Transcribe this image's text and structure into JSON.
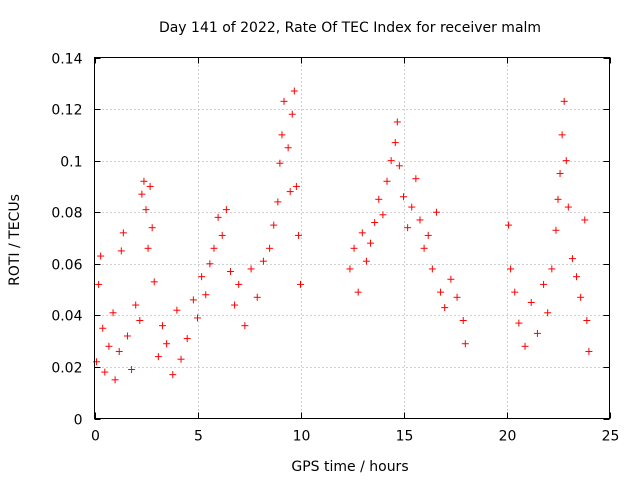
{
  "chart_data": {
    "type": "scatter",
    "title": "Day 141 of 2022, Rate Of TEC Index for receiver malm",
    "xlabel": "GPS time / hours",
    "ylabel": "ROTI / TECUs",
    "xlim": [
      0,
      25
    ],
    "ylim": [
      0,
      0.14
    ],
    "x_ticks": [
      0,
      5,
      10,
      15,
      20,
      25
    ],
    "x_tick_labels": [
      "0",
      "5",
      "10",
      "15",
      "20",
      "25"
    ],
    "y_ticks": [
      0,
      0.02,
      0.04,
      0.06,
      0.08,
      0.1,
      0.12,
      0.14
    ],
    "y_tick_labels": [
      "0",
      "0.02",
      "0.04",
      "0.06",
      "0.08",
      "0.1",
      "0.12",
      "0.14"
    ],
    "grid": true,
    "marker": "+",
    "color": "#ff0000",
    "series": [
      {
        "name": "",
        "points": [
          [
            0.1,
            0.022
          ],
          [
            0.2,
            0.052
          ],
          [
            0.3,
            0.063
          ],
          [
            0.4,
            0.035
          ],
          [
            0.5,
            0.018
          ],
          [
            0.7,
            0.028
          ],
          [
            0.9,
            0.041
          ],
          [
            1.0,
            0.015
          ],
          [
            1.2,
            0.026
          ],
          [
            1.3,
            0.065
          ],
          [
            1.4,
            0.072
          ],
          [
            1.6,
            0.032
          ],
          [
            1.8,
            0.019
          ],
          [
            2.0,
            0.044
          ],
          [
            2.2,
            0.038
          ],
          [
            2.3,
            0.087
          ],
          [
            2.4,
            0.092
          ],
          [
            2.5,
            0.081
          ],
          [
            2.6,
            0.066
          ],
          [
            2.7,
            0.09
          ],
          [
            2.8,
            0.074
          ],
          [
            2.9,
            0.053
          ],
          [
            3.1,
            0.024
          ],
          [
            3.3,
            0.036
          ],
          [
            3.5,
            0.029
          ],
          [
            3.8,
            0.017
          ],
          [
            4.0,
            0.042
          ],
          [
            4.2,
            0.023
          ],
          [
            4.5,
            0.031
          ],
          [
            4.8,
            0.046
          ],
          [
            5.0,
            0.039
          ],
          [
            5.2,
            0.055
          ],
          [
            5.4,
            0.048
          ],
          [
            5.6,
            0.06
          ],
          [
            5.8,
            0.066
          ],
          [
            6.0,
            0.078
          ],
          [
            6.2,
            0.071
          ],
          [
            6.4,
            0.081
          ],
          [
            6.6,
            0.057
          ],
          [
            6.8,
            0.044
          ],
          [
            7.0,
            0.052
          ],
          [
            7.3,
            0.036
          ],
          [
            7.6,
            0.058
          ],
          [
            7.9,
            0.047
          ],
          [
            8.2,
            0.061
          ],
          [
            8.5,
            0.066
          ],
          [
            8.7,
            0.075
          ],
          [
            8.9,
            0.084
          ],
          [
            9.0,
            0.099
          ],
          [
            9.1,
            0.11
          ],
          [
            9.2,
            0.123
          ],
          [
            9.4,
            0.105
          ],
          [
            9.5,
            0.088
          ],
          [
            9.6,
            0.118
          ],
          [
            9.7,
            0.127
          ],
          [
            9.8,
            0.09
          ],
          [
            9.9,
            0.071
          ],
          [
            10.0,
            0.052
          ],
          [
            12.4,
            0.058
          ],
          [
            12.6,
            0.066
          ],
          [
            12.8,
            0.049
          ],
          [
            13.0,
            0.072
          ],
          [
            13.2,
            0.061
          ],
          [
            13.4,
            0.068
          ],
          [
            13.6,
            0.076
          ],
          [
            13.8,
            0.085
          ],
          [
            14.0,
            0.079
          ],
          [
            14.2,
            0.092
          ],
          [
            14.4,
            0.1
          ],
          [
            14.6,
            0.107
          ],
          [
            14.7,
            0.115
          ],
          [
            14.8,
            0.098
          ],
          [
            15.0,
            0.086
          ],
          [
            15.2,
            0.074
          ],
          [
            15.4,
            0.082
          ],
          [
            15.6,
            0.093
          ],
          [
            15.8,
            0.077
          ],
          [
            16.0,
            0.066
          ],
          [
            16.2,
            0.071
          ],
          [
            16.4,
            0.058
          ],
          [
            16.6,
            0.08
          ],
          [
            16.8,
            0.049
          ],
          [
            17.0,
            0.043
          ],
          [
            17.3,
            0.054
          ],
          [
            17.6,
            0.047
          ],
          [
            17.9,
            0.038
          ],
          [
            18.0,
            0.029
          ],
          [
            20.1,
            0.075
          ],
          [
            20.2,
            0.058
          ],
          [
            20.4,
            0.049
          ],
          [
            20.6,
            0.037
          ],
          [
            20.9,
            0.028
          ],
          [
            21.2,
            0.045
          ],
          [
            21.5,
            0.033
          ],
          [
            21.8,
            0.052
          ],
          [
            22.0,
            0.041
          ],
          [
            22.2,
            0.058
          ],
          [
            22.4,
            0.073
          ],
          [
            22.5,
            0.085
          ],
          [
            22.6,
            0.095
          ],
          [
            22.7,
            0.11
          ],
          [
            22.8,
            0.123
          ],
          [
            22.9,
            0.1
          ],
          [
            23.0,
            0.082
          ],
          [
            23.2,
            0.062
          ],
          [
            23.4,
            0.055
          ],
          [
            23.6,
            0.047
          ],
          [
            23.8,
            0.077
          ],
          [
            23.9,
            0.038
          ],
          [
            24.0,
            0.026
          ]
        ]
      }
    ]
  }
}
